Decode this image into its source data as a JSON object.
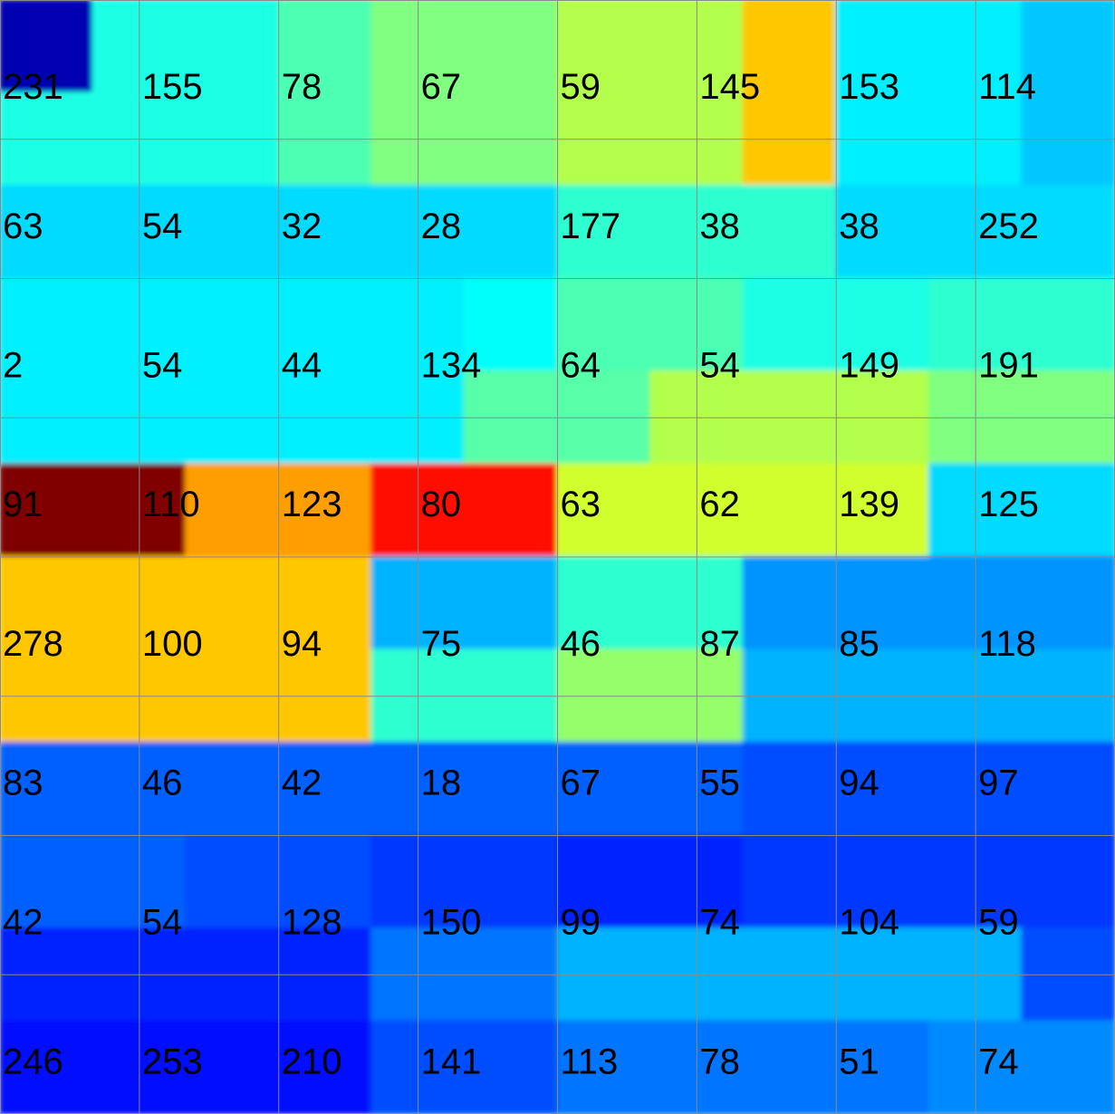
{
  "chart_data": {
    "type": "heatmap",
    "title": "",
    "xlabel": "",
    "ylabel": "",
    "grid": true,
    "colormap": "jet",
    "rows": 8,
    "cols": 8,
    "sub_resolution": 12,
    "labels": [
      [
        231,
        155,
        78,
        67,
        59,
        145,
        153,
        114
      ],
      [
        63,
        54,
        32,
        28,
        177,
        38,
        38,
        252
      ],
      [
        2,
        54,
        44,
        134,
        64,
        54,
        149,
        191
      ],
      [
        91,
        110,
        123,
        80,
        63,
        62,
        139,
        125
      ],
      [
        278,
        100,
        94,
        75,
        46,
        87,
        85,
        118
      ],
      [
        83,
        46,
        42,
        18,
        67,
        55,
        94,
        97
      ],
      [
        42,
        54,
        128,
        150,
        99,
        74,
        104,
        59
      ],
      [
        246,
        253,
        210,
        141,
        113,
        78,
        51,
        74
      ]
    ],
    "intensity": [
      [
        0.05,
        0.4,
        0.4,
        0.45,
        0.5,
        0.5,
        0.55,
        0.55,
        0.68,
        0.36,
        0.36,
        0.32
      ],
      [
        0.4,
        0.4,
        0.4,
        0.45,
        0.5,
        0.5,
        0.55,
        0.55,
        0.68,
        0.36,
        0.36,
        0.32
      ],
      [
        0.34,
        0.34,
        0.34,
        0.34,
        0.34,
        0.34,
        0.42,
        0.42,
        0.42,
        0.34,
        0.34,
        0.34
      ],
      [
        0.36,
        0.36,
        0.36,
        0.36,
        0.36,
        0.38,
        0.45,
        0.45,
        0.4,
        0.4,
        0.42,
        0.42
      ],
      [
        0.36,
        0.36,
        0.36,
        0.36,
        0.36,
        0.46,
        0.46,
        0.55,
        0.55,
        0.55,
        0.5,
        0.5
      ],
      [
        1.0,
        1.0,
        0.72,
        0.72,
        0.86,
        0.86,
        0.58,
        0.58,
        0.58,
        0.58,
        0.34,
        0.34
      ],
      [
        0.68,
        0.68,
        0.68,
        0.68,
        0.3,
        0.3,
        0.42,
        0.42,
        0.27,
        0.27,
        0.27,
        0.27
      ],
      [
        0.68,
        0.68,
        0.68,
        0.68,
        0.42,
        0.42,
        0.52,
        0.52,
        0.3,
        0.3,
        0.3,
        0.3
      ],
      [
        0.22,
        0.22,
        0.22,
        0.22,
        0.22,
        0.22,
        0.22,
        0.22,
        0.2,
        0.2,
        0.2,
        0.2
      ],
      [
        0.22,
        0.22,
        0.2,
        0.2,
        0.18,
        0.18,
        0.16,
        0.16,
        0.18,
        0.18,
        0.18,
        0.18
      ],
      [
        0.16,
        0.16,
        0.16,
        0.16,
        0.24,
        0.24,
        0.3,
        0.3,
        0.3,
        0.3,
        0.3,
        0.2
      ],
      [
        0.14,
        0.14,
        0.14,
        0.14,
        0.2,
        0.2,
        0.24,
        0.24,
        0.24,
        0.24,
        0.26,
        0.26
      ]
    ]
  }
}
